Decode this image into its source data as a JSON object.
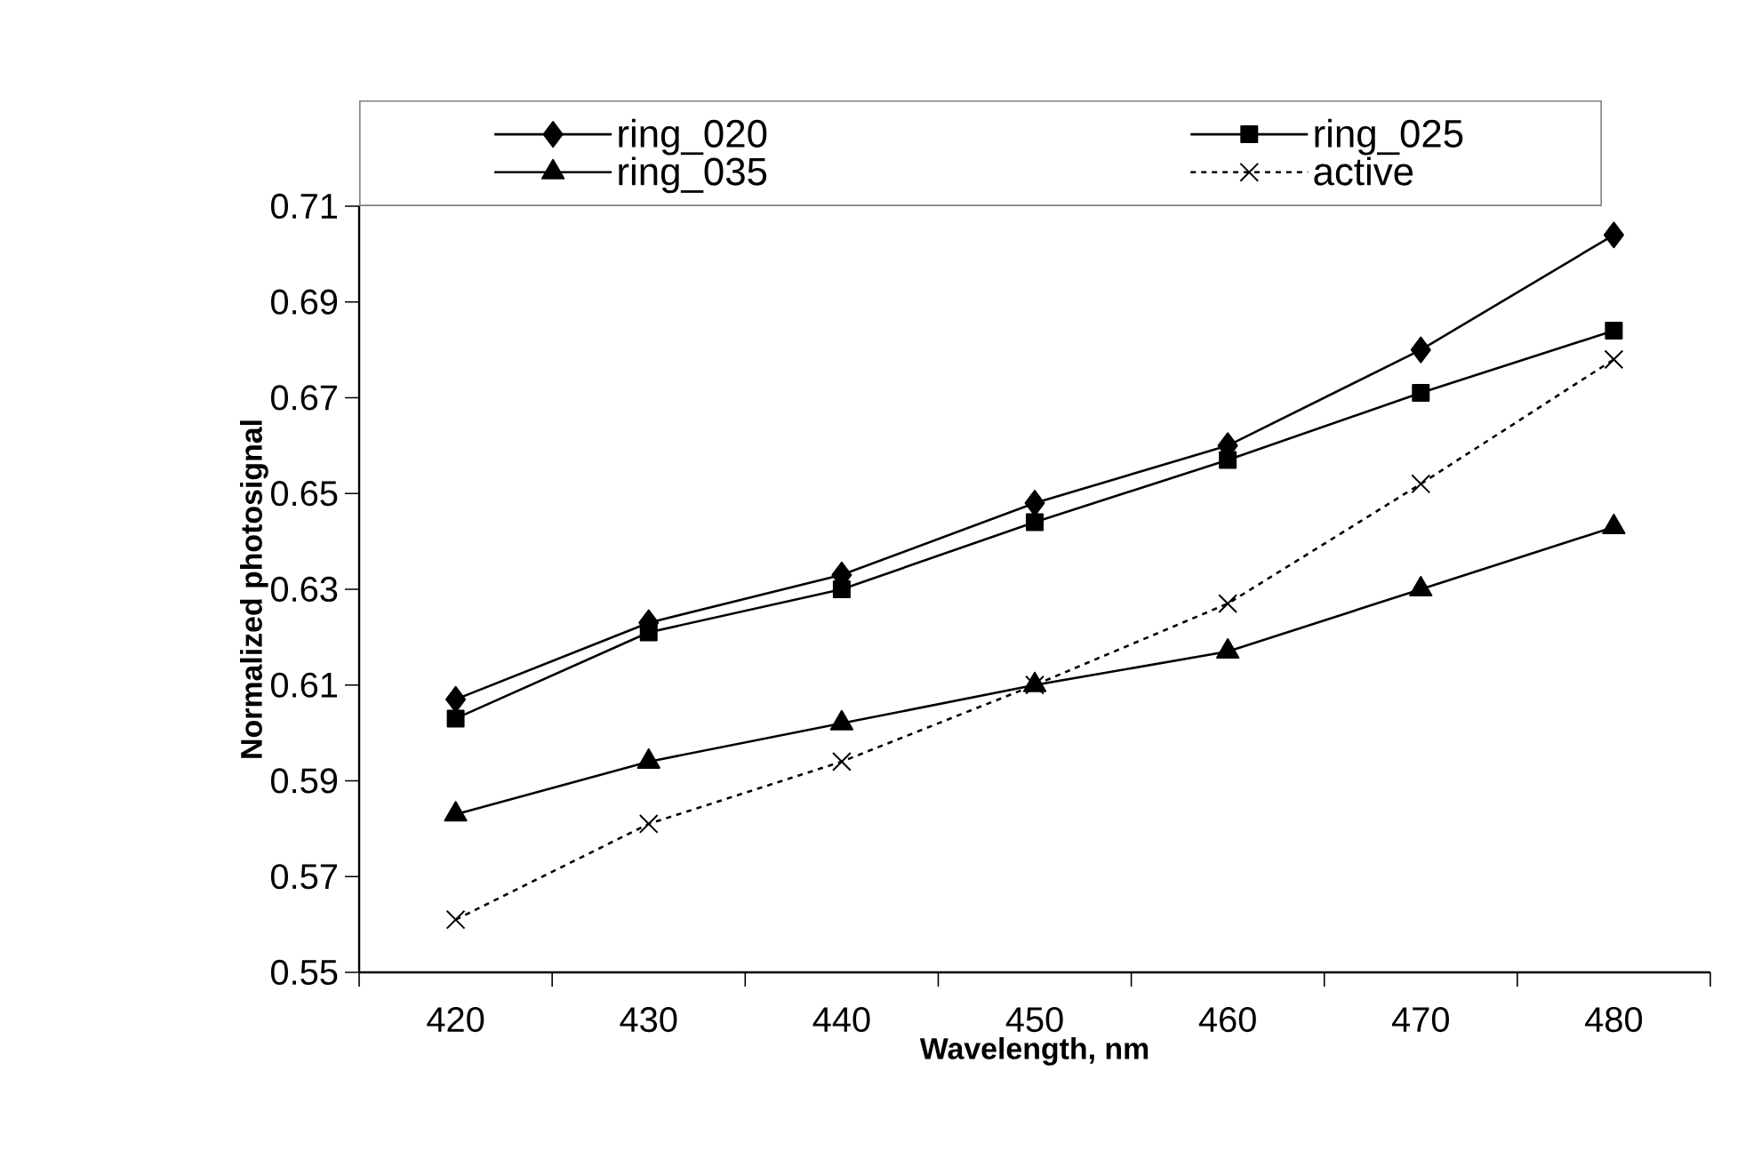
{
  "chart_data": {
    "type": "line",
    "xlabel": "Wavelength, nm",
    "ylabel": "Normalized photosignal",
    "categories": [
      "420",
      "430",
      "440",
      "450",
      "460",
      "470",
      "480"
    ],
    "series": [
      {
        "name": "ring_020",
        "color": "#000000",
        "marker": "diamond",
        "line_style": "solid",
        "values": [
          0.607,
          0.623,
          0.633,
          0.648,
          0.66,
          0.68,
          0.704
        ]
      },
      {
        "name": "ring_025",
        "color": "#000000",
        "marker": "square",
        "line_style": "solid",
        "values": [
          0.603,
          0.621,
          0.63,
          0.644,
          0.657,
          0.671,
          0.684
        ]
      },
      {
        "name": "ring_035",
        "color": "#000000",
        "marker": "triangle",
        "line_style": "solid",
        "values": [
          0.583,
          0.594,
          0.602,
          0.61,
          0.617,
          0.63,
          0.643
        ]
      },
      {
        "name": "active",
        "color": "#000000",
        "marker": "cross",
        "line_style": "dashed",
        "values": [
          0.561,
          0.581,
          0.594,
          0.61,
          0.627,
          0.652,
          0.678
        ]
      }
    ],
    "ylim": [
      0.55,
      0.71
    ],
    "yticks": [
      0.55,
      0.57,
      0.59,
      0.61,
      0.63,
      0.65,
      0.67,
      0.69,
      0.71
    ],
    "legend": "top"
  }
}
